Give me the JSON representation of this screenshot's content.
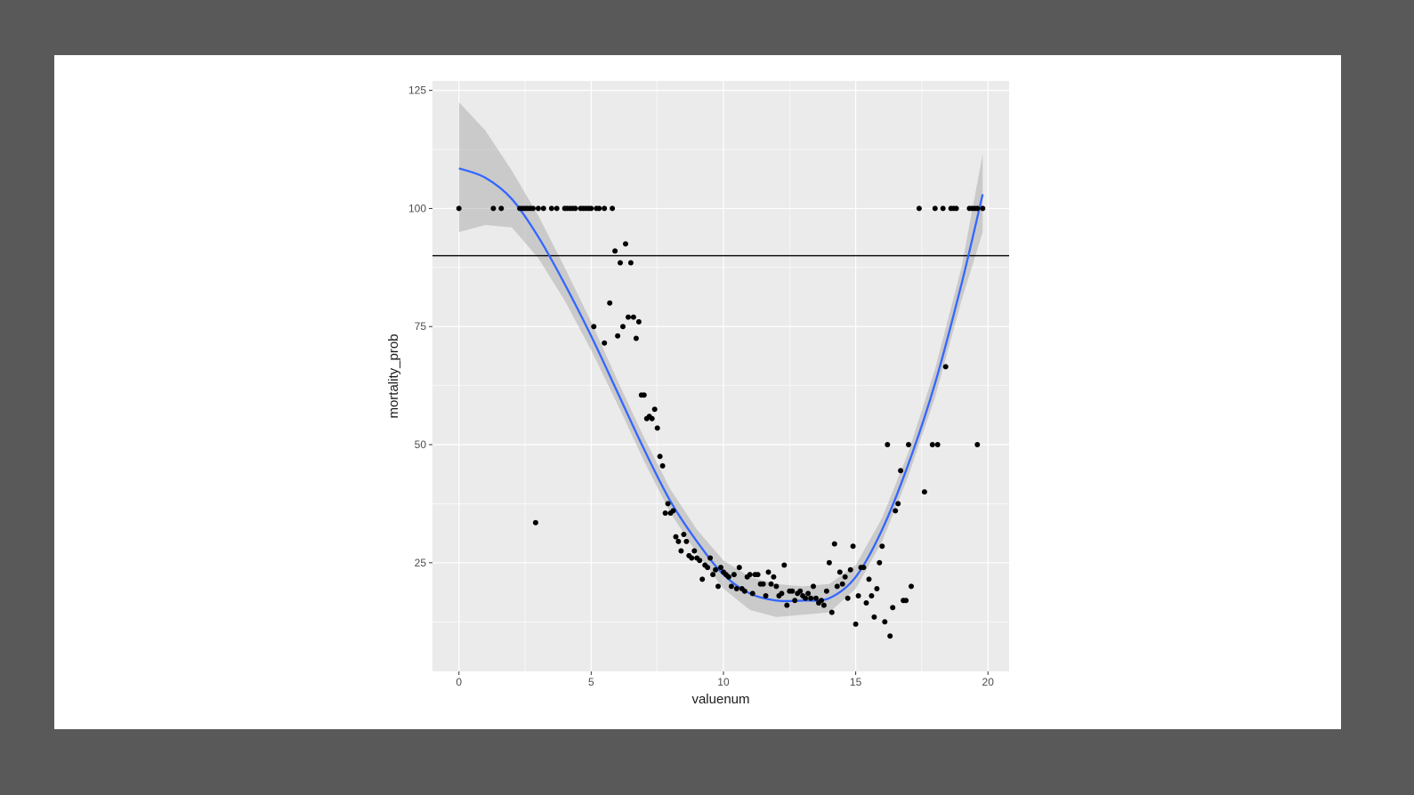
{
  "chart_data": {
    "type": "scatter",
    "xlabel": "valuenum",
    "ylabel": "mortality_prob",
    "xlim": [
      -1,
      20.8
    ],
    "ylim": [
      2,
      127
    ],
    "x_ticks": [
      0,
      5,
      10,
      15,
      20
    ],
    "x_tick_labels": [
      "0",
      "5",
      "10",
      "15",
      "20"
    ],
    "y_ticks": [
      25,
      50,
      75,
      100,
      125
    ],
    "y_tick_labels": [
      "25",
      "50",
      "75",
      "100",
      "125"
    ],
    "grid": true,
    "reference_line": {
      "orientation": "horizontal",
      "y": 90,
      "color": "#000000"
    },
    "smooth": {
      "method": "polynomial fit with confidence band",
      "color": "#3366FF",
      "band_color": "#999999",
      "x": [
        0,
        1,
        2,
        3,
        4,
        5,
        6,
        7,
        8,
        9,
        10,
        11,
        12,
        13,
        14,
        15,
        16,
        17,
        18,
        19,
        19.8
      ],
      "y": [
        108.5,
        106.5,
        102,
        94,
        84,
        73,
        61,
        49,
        38,
        29.5,
        22.5,
        18.5,
        17,
        17,
        17.5,
        22,
        32,
        46,
        63,
        84,
        103
      ],
      "lower": [
        95,
        96.5,
        96,
        89.5,
        80.5,
        70,
        58.5,
        46.5,
        35.5,
        27,
        19.5,
        15,
        13.5,
        14,
        14.5,
        19.5,
        29.5,
        43.5,
        60,
        80.5,
        95
      ],
      "upper": [
        122.5,
        116.5,
        108,
        98.5,
        87.5,
        76,
        63.5,
        51.5,
        40.5,
        32,
        25.5,
        22,
        20.5,
        20,
        20.5,
        24.5,
        34.5,
        48.5,
        66,
        87.5,
        111.5
      ]
    },
    "series": [
      {
        "color": "#000000",
        "points": [
          [
            0,
            100
          ],
          [
            1.3,
            100
          ],
          [
            1.6,
            100
          ],
          [
            2.3,
            100
          ],
          [
            2.4,
            100
          ],
          [
            2.5,
            100
          ],
          [
            2.6,
            100
          ],
          [
            2.7,
            100
          ],
          [
            2.8,
            100
          ],
          [
            3.0,
            100
          ],
          [
            3.2,
            100
          ],
          [
            3.5,
            100
          ],
          [
            3.7,
            100
          ],
          [
            4.0,
            100
          ],
          [
            4.1,
            100
          ],
          [
            4.2,
            100
          ],
          [
            4.3,
            100
          ],
          [
            4.4,
            100
          ],
          [
            4.6,
            100
          ],
          [
            4.7,
            100
          ],
          [
            4.8,
            100
          ],
          [
            4.9,
            100
          ],
          [
            5.0,
            100
          ],
          [
            5.2,
            100
          ],
          [
            5.3,
            100
          ],
          [
            5.5,
            100
          ],
          [
            5.8,
            100
          ],
          [
            17.4,
            100
          ],
          [
            18.0,
            100
          ],
          [
            18.3,
            100
          ],
          [
            18.6,
            100
          ],
          [
            18.7,
            100
          ],
          [
            18.8,
            100
          ],
          [
            19.3,
            100
          ],
          [
            19.4,
            100
          ],
          [
            19.5,
            100
          ],
          [
            19.6,
            100
          ],
          [
            19.8,
            100
          ],
          [
            2.9,
            33.5
          ],
          [
            5.9,
            91
          ],
          [
            6.1,
            88.5
          ],
          [
            6.3,
            92.5
          ],
          [
            6.5,
            88.5
          ],
          [
            5.7,
            80
          ],
          [
            5.1,
            75
          ],
          [
            5.5,
            71.5
          ],
          [
            6.0,
            73
          ],
          [
            6.2,
            75
          ],
          [
            6.4,
            77
          ],
          [
            6.6,
            77
          ],
          [
            6.7,
            72.5
          ],
          [
            6.8,
            76
          ],
          [
            6.9,
            60.5
          ],
          [
            7.0,
            60.5
          ],
          [
            7.1,
            55.5
          ],
          [
            7.2,
            56
          ],
          [
            7.3,
            55.5
          ],
          [
            7.4,
            57.5
          ],
          [
            7.5,
            53.5
          ],
          [
            7.6,
            47.5
          ],
          [
            7.7,
            45.5
          ],
          [
            7.8,
            35.5
          ],
          [
            7.9,
            37.5
          ],
          [
            8.0,
            35.5
          ],
          [
            8.1,
            36
          ],
          [
            8.2,
            30.5
          ],
          [
            8.3,
            29.5
          ],
          [
            8.4,
            27.5
          ],
          [
            8.5,
            31
          ],
          [
            8.6,
            29.5
          ],
          [
            8.7,
            26.5
          ],
          [
            8.8,
            26
          ],
          [
            8.9,
            27.5
          ],
          [
            9.0,
            26
          ],
          [
            9.1,
            25.5
          ],
          [
            9.2,
            21.5
          ],
          [
            9.3,
            24.5
          ],
          [
            9.4,
            24
          ],
          [
            9.5,
            26
          ],
          [
            9.6,
            22.5
          ],
          [
            9.7,
            23.5
          ],
          [
            9.8,
            20
          ],
          [
            9.9,
            24
          ],
          [
            10.0,
            23
          ],
          [
            10.1,
            22.5
          ],
          [
            10.2,
            22
          ],
          [
            10.3,
            20
          ],
          [
            10.4,
            22.5
          ],
          [
            10.5,
            19.5
          ],
          [
            10.6,
            24
          ],
          [
            10.7,
            19.5
          ],
          [
            10.8,
            19
          ],
          [
            10.9,
            22
          ],
          [
            11.0,
            22.5
          ],
          [
            11.1,
            18.5
          ],
          [
            11.2,
            22.5
          ],
          [
            11.3,
            22.5
          ],
          [
            11.4,
            20.5
          ],
          [
            11.5,
            20.5
          ],
          [
            11.6,
            18
          ],
          [
            11.7,
            23
          ],
          [
            11.8,
            20.5
          ],
          [
            11.9,
            22
          ],
          [
            12.0,
            20
          ],
          [
            12.1,
            18
          ],
          [
            12.2,
            18.5
          ],
          [
            12.3,
            24.5
          ],
          [
            12.4,
            16
          ],
          [
            12.5,
            19
          ],
          [
            12.6,
            19
          ],
          [
            12.7,
            17
          ],
          [
            12.8,
            18.5
          ],
          [
            12.9,
            19
          ],
          [
            13.0,
            18
          ],
          [
            13.1,
            17.5
          ],
          [
            13.2,
            18.5
          ],
          [
            13.3,
            17.5
          ],
          [
            13.4,
            20
          ],
          [
            13.5,
            17.5
          ],
          [
            13.6,
            16.5
          ],
          [
            13.7,
            17
          ],
          [
            13.8,
            16
          ],
          [
            13.9,
            19
          ],
          [
            14.0,
            25
          ],
          [
            14.1,
            14.5
          ],
          [
            14.2,
            29
          ],
          [
            14.3,
            20
          ],
          [
            14.4,
            23
          ],
          [
            14.5,
            20.5
          ],
          [
            14.6,
            22
          ],
          [
            14.7,
            17.5
          ],
          [
            14.8,
            23.5
          ],
          [
            14.9,
            28.5
          ],
          [
            15.0,
            12
          ],
          [
            15.1,
            18
          ],
          [
            15.2,
            24
          ],
          [
            15.3,
            24
          ],
          [
            15.4,
            16.5
          ],
          [
            15.5,
            21.5
          ],
          [
            15.6,
            18
          ],
          [
            15.7,
            13.5
          ],
          [
            15.8,
            19.5
          ],
          [
            15.9,
            25
          ],
          [
            16.0,
            28.5
          ],
          [
            16.1,
            12.5
          ],
          [
            16.2,
            50
          ],
          [
            16.3,
            9.5
          ],
          [
            16.4,
            15.5
          ],
          [
            16.5,
            36
          ],
          [
            16.6,
            37.5
          ],
          [
            16.7,
            44.5
          ],
          [
            16.8,
            17
          ],
          [
            16.9,
            17
          ],
          [
            17.0,
            50
          ],
          [
            17.1,
            20
          ],
          [
            17.6,
            40
          ],
          [
            17.9,
            50
          ],
          [
            18.1,
            50
          ],
          [
            18.4,
            66.5
          ],
          [
            19.6,
            50
          ]
        ]
      }
    ]
  }
}
